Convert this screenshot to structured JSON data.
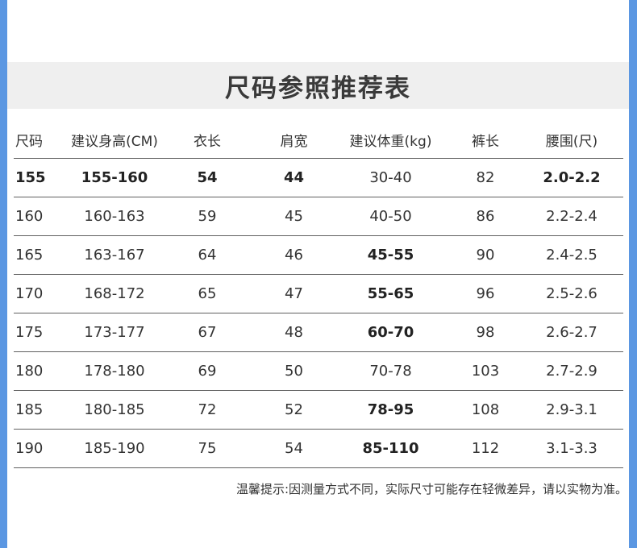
{
  "title": "尺码参照推荐表",
  "colors": {
    "side_bar": "#5b97e2",
    "title_band": "#efefef"
  },
  "headers": [
    "尺码",
    "建议身高(CM)",
    "衣长",
    "肩宽",
    "建议体重(kg)",
    "裤长",
    "腰围(尺)"
  ],
  "rows": [
    [
      "155",
      "155-160",
      "54",
      "44",
      "30-40",
      "82",
      "2.0-2.2"
    ],
    [
      "160",
      "160-163",
      "59",
      "45",
      "40-50",
      "86",
      "2.2-2.4"
    ],
    [
      "165",
      "163-167",
      "64",
      "46",
      "45-55",
      "90",
      "2.4-2.5"
    ],
    [
      "170",
      "168-172",
      "65",
      "47",
      "55-65",
      "96",
      "2.5-2.6"
    ],
    [
      "175",
      "173-177",
      "67",
      "48",
      "60-70",
      "98",
      "2.6-2.7"
    ],
    [
      "180",
      "178-180",
      "69",
      "50",
      "70-78",
      "103",
      "2.7-2.9"
    ],
    [
      "185",
      "180-185",
      "72",
      "52",
      "78-95",
      "108",
      "2.9-3.1"
    ],
    [
      "190",
      "185-190",
      "75",
      "54",
      "85-110",
      "112",
      "3.1-3.3"
    ]
  ],
  "note": "温馨提示:因测量方式不同，实际尺寸可能存在轻微差异，请以实物为准。"
}
